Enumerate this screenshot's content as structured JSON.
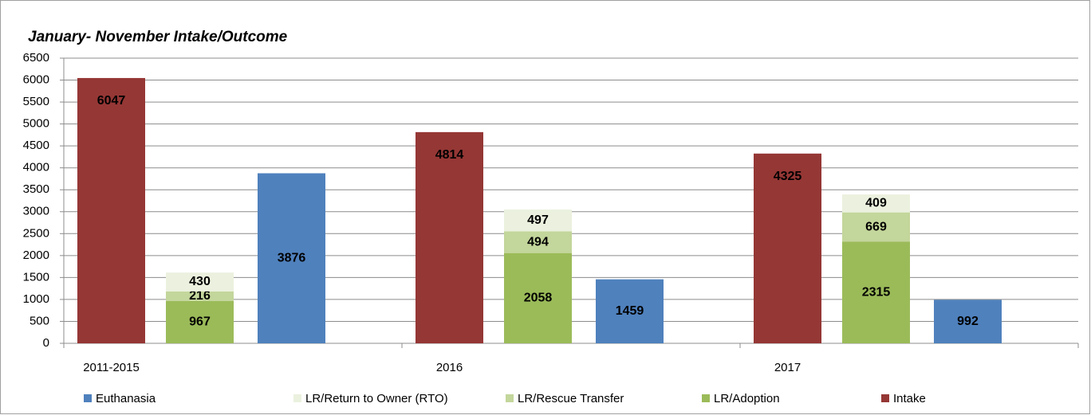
{
  "chart_data": {
    "type": "bar",
    "title": "January- November Intake/Outcome",
    "categories": [
      "2011-2015",
      "2016",
      "2017"
    ],
    "series": [
      {
        "name": "Intake",
        "color": "#953735",
        "values": [
          6047,
          4814,
          4325
        ]
      },
      {
        "name": "LR/Adoption",
        "color": "#9bbb59",
        "values": [
          967,
          2058,
          2315
        ]
      },
      {
        "name": "LR/Rescue Transfer",
        "color": "#c3d69b",
        "values": [
          216,
          494,
          669
        ]
      },
      {
        "name": "LR/Return to Owner (RTO)",
        "color": "#ebf1de",
        "values": [
          430,
          497,
          409
        ]
      },
      {
        "name": "Euthanasia",
        "color": "#4f81bd",
        "values": [
          3876,
          1459,
          992
        ]
      }
    ],
    "ylim": [
      0,
      6500
    ],
    "yticks": [
      0,
      500,
      1000,
      1500,
      2000,
      2500,
      3000,
      3500,
      4000,
      4500,
      5000,
      5500,
      6000,
      6500
    ],
    "grid": true,
    "legend": "bottom"
  }
}
